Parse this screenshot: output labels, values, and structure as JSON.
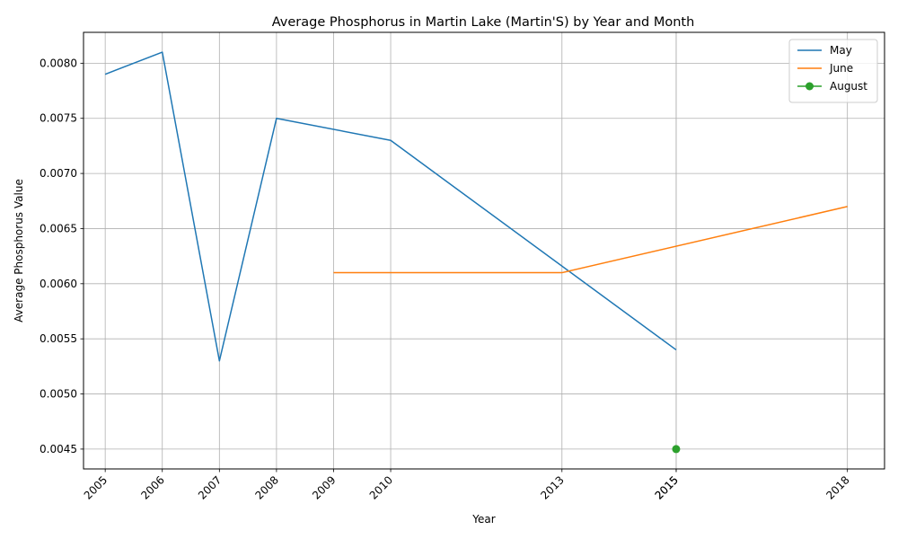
{
  "chart_data": {
    "type": "line",
    "title": "Average Phosphorus in Martin Lake (Martin'S) by Year and Month",
    "xlabel": "Year",
    "ylabel": "Average Phosphorus Value",
    "x_ticks": [
      "2005",
      "2006",
      "2007",
      "2008",
      "2009",
      "2010",
      "2013",
      "2015",
      "2015",
      "2018"
    ],
    "x_tick_values": [
      2005,
      2006,
      2007,
      2008,
      2009,
      2010,
      2013,
      2015,
      2015,
      2018
    ],
    "xlim": [
      2004.62,
      2018.65
    ],
    "ylim": [
      0.00432,
      0.00828
    ],
    "y_ticks": [
      "0.0045",
      "0.0050",
      "0.0055",
      "0.0060",
      "0.0065",
      "0.0070",
      "0.0075",
      "0.0080"
    ],
    "y_tick_values": [
      0.0045,
      0.005,
      0.0055,
      0.006,
      0.0065,
      0.007,
      0.0075,
      0.008
    ],
    "grid": true,
    "legend_position": "top-right",
    "series": [
      {
        "name": "May",
        "color": "#1f77b4",
        "marker": "none",
        "x": [
          2005,
          2006,
          2007,
          2008,
          2010,
          2015
        ],
        "y": [
          0.0079,
          0.0081,
          0.0053,
          0.0075,
          0.0073,
          0.0054
        ]
      },
      {
        "name": "June",
        "color": "#ff7f0e",
        "marker": "none",
        "x": [
          2009,
          2010,
          2013,
          2018
        ],
        "y": [
          0.0061,
          0.0061,
          0.0061,
          0.0067
        ]
      },
      {
        "name": "August",
        "color": "#2ca02c",
        "marker": "circle",
        "x": [
          2015
        ],
        "y": [
          0.0045
        ]
      }
    ]
  }
}
